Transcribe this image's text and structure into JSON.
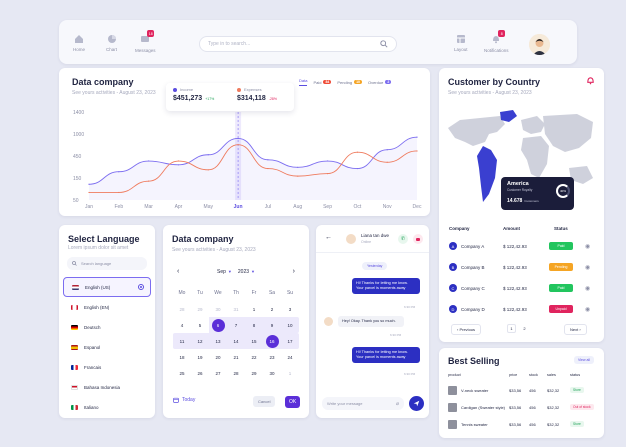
{
  "nav": {
    "items": [
      {
        "label": "Home",
        "icon": "home-icon"
      },
      {
        "label": "Chart",
        "icon": "pie-chart-icon"
      },
      {
        "label": "Messages",
        "icon": "message-icon",
        "badge": "18"
      }
    ],
    "search_placeholder": "Type in to search...",
    "right_items": [
      {
        "label": "Layout",
        "icon": "layout-icon"
      },
      {
        "label": "Notifications",
        "icon": "bell-icon",
        "badge": "8"
      }
    ]
  },
  "main_chart": {
    "title": "Data company",
    "subtitle": "See yours activities - August 23, 2023",
    "tabs": [
      {
        "label": "Data",
        "badge": "",
        "active": true
      },
      {
        "label": "Paid",
        "badge": "84",
        "color": "#ef4b36"
      },
      {
        "label": "Pending",
        "badge": "10",
        "color": "#f5a524"
      },
      {
        "label": "Overdue",
        "badge": "2",
        "color": "#7c6df0"
      }
    ],
    "tooltip": {
      "income_label": "Income",
      "income_value": "$451,273",
      "income_change": "+17%",
      "expenses_label": "Expenses",
      "expenses_value": "$314,118",
      "expenses_change": "-28%"
    }
  },
  "chart_data": {
    "type": "line",
    "categories": [
      "Jan",
      "Feb",
      "Mar",
      "Apr",
      "May",
      "Jun",
      "Jul",
      "Aug",
      "Sep",
      "Oct",
      "Nov",
      "Dec"
    ],
    "ylim": [
      0,
      1400
    ],
    "yticks": [
      "1400",
      "1000",
      "450",
      "150",
      "50"
    ],
    "series": [
      {
        "name": "Income",
        "color": "#7c6df0",
        "values": [
          250,
          450,
          620,
          560,
          720,
          980,
          640,
          520,
          620,
          500,
          800,
          1000
        ]
      },
      {
        "name": "Expenses",
        "color": "#ef7b5e",
        "values": [
          120,
          120,
          300,
          620,
          480,
          880,
          500,
          380,
          420,
          760,
          600,
          780
        ]
      }
    ]
  },
  "language": {
    "title": "Select Language",
    "subtitle": "Lorem ipsum dolor sit amet",
    "search_placeholder": "Search language",
    "items": [
      {
        "label": "English (US)",
        "selected": true
      },
      {
        "label": "English (EN)",
        "selected": false
      },
      {
        "label": "Deutsch",
        "selected": false
      },
      {
        "label": "Espanol",
        "selected": false
      },
      {
        "label": "Francais",
        "selected": false
      },
      {
        "label": "Bahasa Indonesia",
        "selected": false
      },
      {
        "label": "Italiano",
        "selected": false
      }
    ]
  },
  "calendar": {
    "title": "Data company",
    "subtitle": "See yours activities - August 23, 2023",
    "month": "Sep",
    "year": "2023",
    "weekdays": [
      "Mo",
      "Tu",
      "We",
      "Th",
      "Fr",
      "Sa",
      "Su"
    ],
    "weeks": [
      [
        "28",
        "29",
        "30",
        "31",
        "1",
        "2",
        "3"
      ],
      [
        "4",
        "5",
        "6",
        "7",
        "8",
        "9",
        "10"
      ],
      [
        "11",
        "12",
        "13",
        "14",
        "15",
        "16",
        "17"
      ],
      [
        "18",
        "19",
        "20",
        "21",
        "22",
        "23",
        "24"
      ],
      [
        "25",
        "26",
        "27",
        "28",
        "29",
        "30",
        "1"
      ]
    ],
    "today_label": "Today",
    "cancel_label": "Cancel",
    "ok_label": "OK"
  },
  "chat": {
    "name": "Liana tan dwe",
    "status": "Online",
    "day_label": "Yesterday",
    "messages": [
      {
        "text": "Hi! Thanks for letting me know. Your parcel is moments away",
        "time": "6:30 PM",
        "own": true
      },
      {
        "text": "Hey! Okay. Thank you so much.",
        "time": "6:30 PM",
        "own": false
      },
      {
        "text": "Hi! Thanks for letting me know. Your parcel is moments away",
        "time": "6:30 PM",
        "own": true
      }
    ],
    "input_placeholder": "Write your message"
  },
  "country": {
    "title": "Customer by Country",
    "subtitle": "See yours activities - August 23, 2023",
    "popup": {
      "region": "America",
      "label": "Customer Royalty",
      "percent": "40%",
      "count": "14.678",
      "count_label": "Customers"
    },
    "headers": [
      "Company",
      "Amount",
      "Status"
    ],
    "rows": [
      {
        "letter": "A",
        "company": "Company A",
        "amount": "$ 122,42.93",
        "status": "Paid",
        "color": "#22c55e"
      },
      {
        "letter": "B",
        "company": "Company B",
        "amount": "$ 122,42.93",
        "status": "Pending",
        "color": "#f5a524"
      },
      {
        "letter": "C",
        "company": "Company C",
        "amount": "$ 122,42.93",
        "status": "Paid",
        "color": "#22c55e"
      },
      {
        "letter": "D",
        "company": "Company D",
        "amount": "$ 122,42.93",
        "status": "Unpaid",
        "color": "#e0245e"
      }
    ],
    "prev_label": "Previous",
    "next_label": "Next",
    "pages": [
      "1",
      "2"
    ]
  },
  "best_selling": {
    "title": "Best Selling",
    "view_all": "View all",
    "headers": [
      "product",
      "price",
      "stock",
      "sales",
      "status"
    ],
    "rows": [
      {
        "product": "V-neck sweater",
        "price": "$33,56",
        "stock": "456",
        "sales": "$32,32",
        "status": "Store",
        "bg": "#e8f7ee",
        "fg": "#22a35a"
      },
      {
        "product": "Cardigan (Sweater style)",
        "price": "$33,56",
        "stock": "456",
        "sales": "$32,32",
        "status": "Out of stock",
        "bg": "#fde8ee",
        "fg": "#e0245e"
      },
      {
        "product": "Tennis sweater",
        "price": "$33,56",
        "stock": "456",
        "sales": "$32,32",
        "status": "Store",
        "bg": "#e8f7ee",
        "fg": "#22a35a"
      }
    ]
  }
}
